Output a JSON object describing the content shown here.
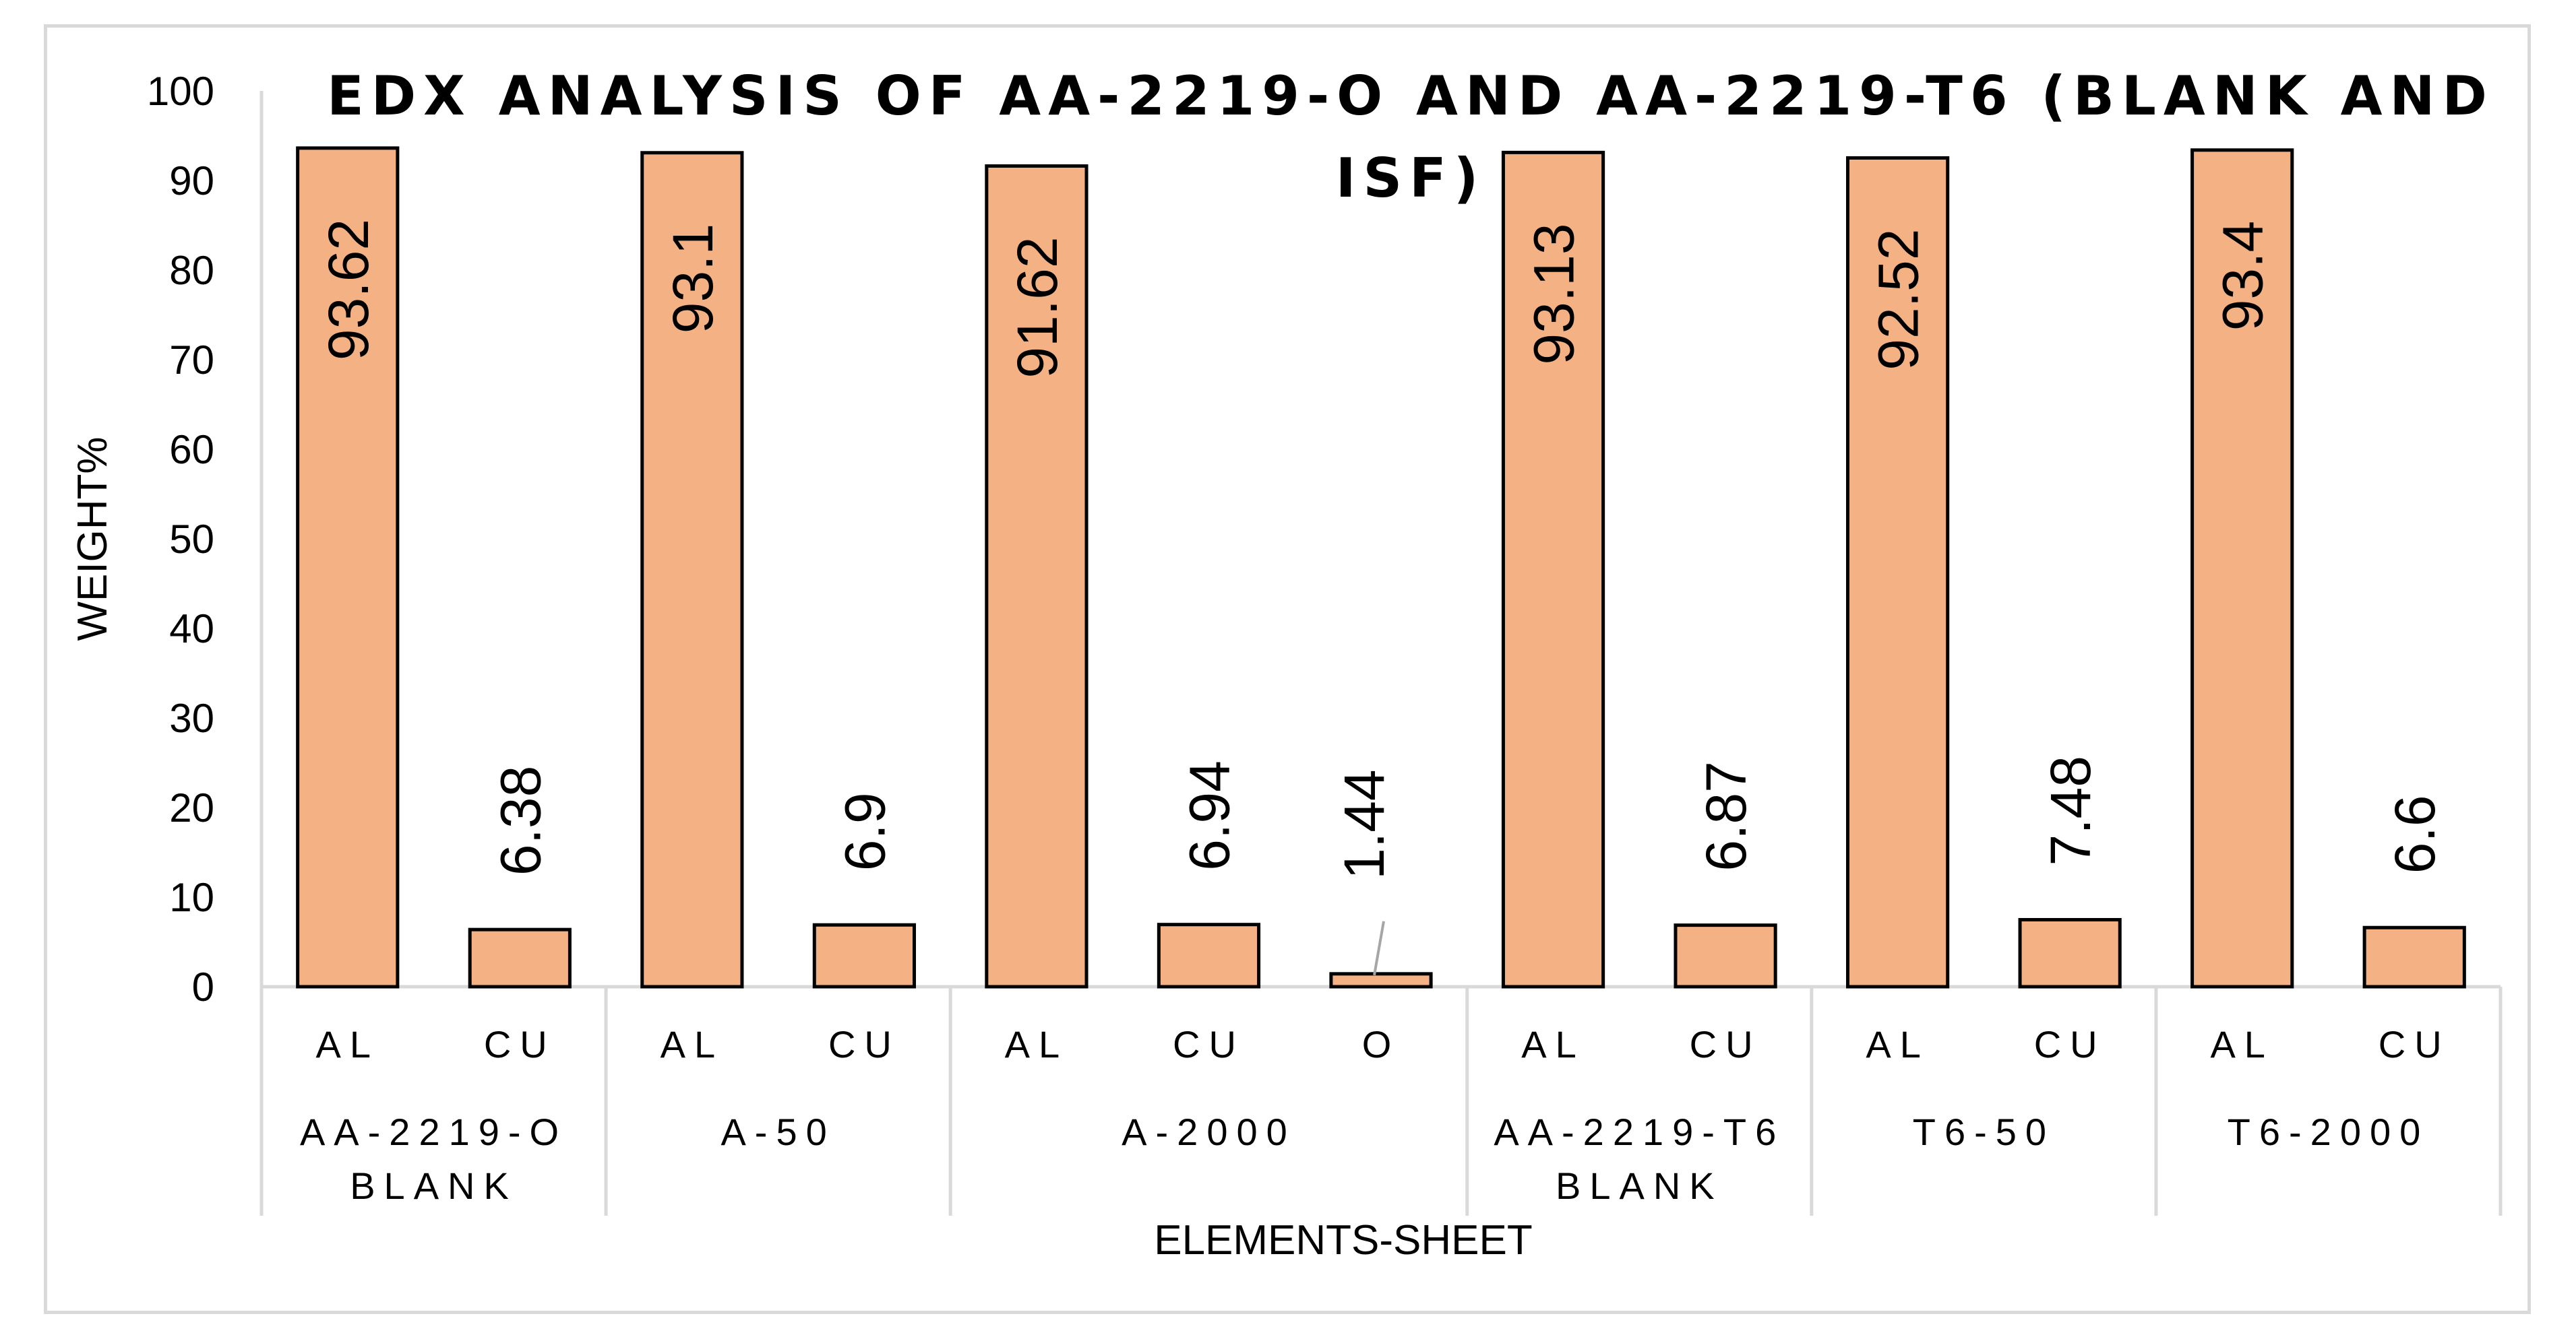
{
  "chart_data": {
    "type": "bar",
    "title_lines": [
      "EDX ANALYSIS OF AA-2219-O AND AA-2219-T6 (BLANK AND",
      "ISF)"
    ],
    "xlabel": "ELEMENTS-SHEET",
    "ylabel": "WEIGHT%",
    "ylim": [
      0,
      100
    ],
    "yticks": [
      "0",
      "10",
      "20",
      "30",
      "40",
      "50",
      "60",
      "70",
      "80",
      "90",
      "100"
    ],
    "grid": false,
    "legend": "none",
    "bar_color": "#F4B183",
    "groups": [
      {
        "label_lines": [
          "AA-2219-O",
          "BLANK"
        ],
        "categories": [
          "AL",
          "CU"
        ],
        "values": [
          93.62,
          6.38
        ],
        "labels": [
          "93.62",
          "6.38"
        ]
      },
      {
        "label_lines": [
          "A-50"
        ],
        "categories": [
          "AL",
          "CU"
        ],
        "values": [
          93.1,
          6.9
        ],
        "labels": [
          "93.1",
          "6.9"
        ]
      },
      {
        "label_lines": [
          "A-2000"
        ],
        "categories": [
          "AL",
          "CU",
          "O"
        ],
        "values": [
          91.62,
          6.94,
          1.44
        ],
        "labels": [
          "91.62",
          "6.94",
          "1.44"
        ]
      },
      {
        "label_lines": [
          "AA-2219-T6",
          "BLANK"
        ],
        "categories": [
          "AL",
          "CU"
        ],
        "values": [
          93.13,
          6.87
        ],
        "labels": [
          "93.13",
          "6.87"
        ]
      },
      {
        "label_lines": [
          "T6-50"
        ],
        "categories": [
          "AL",
          "CU"
        ],
        "values": [
          92.52,
          7.48
        ],
        "labels": [
          "92.52",
          "7.48"
        ]
      },
      {
        "label_lines": [
          "T6-2000"
        ],
        "categories": [
          "AL",
          "CU"
        ],
        "values": [
          93.4,
          6.6
        ],
        "labels": [
          "93.4",
          "6.6"
        ]
      }
    ]
  }
}
